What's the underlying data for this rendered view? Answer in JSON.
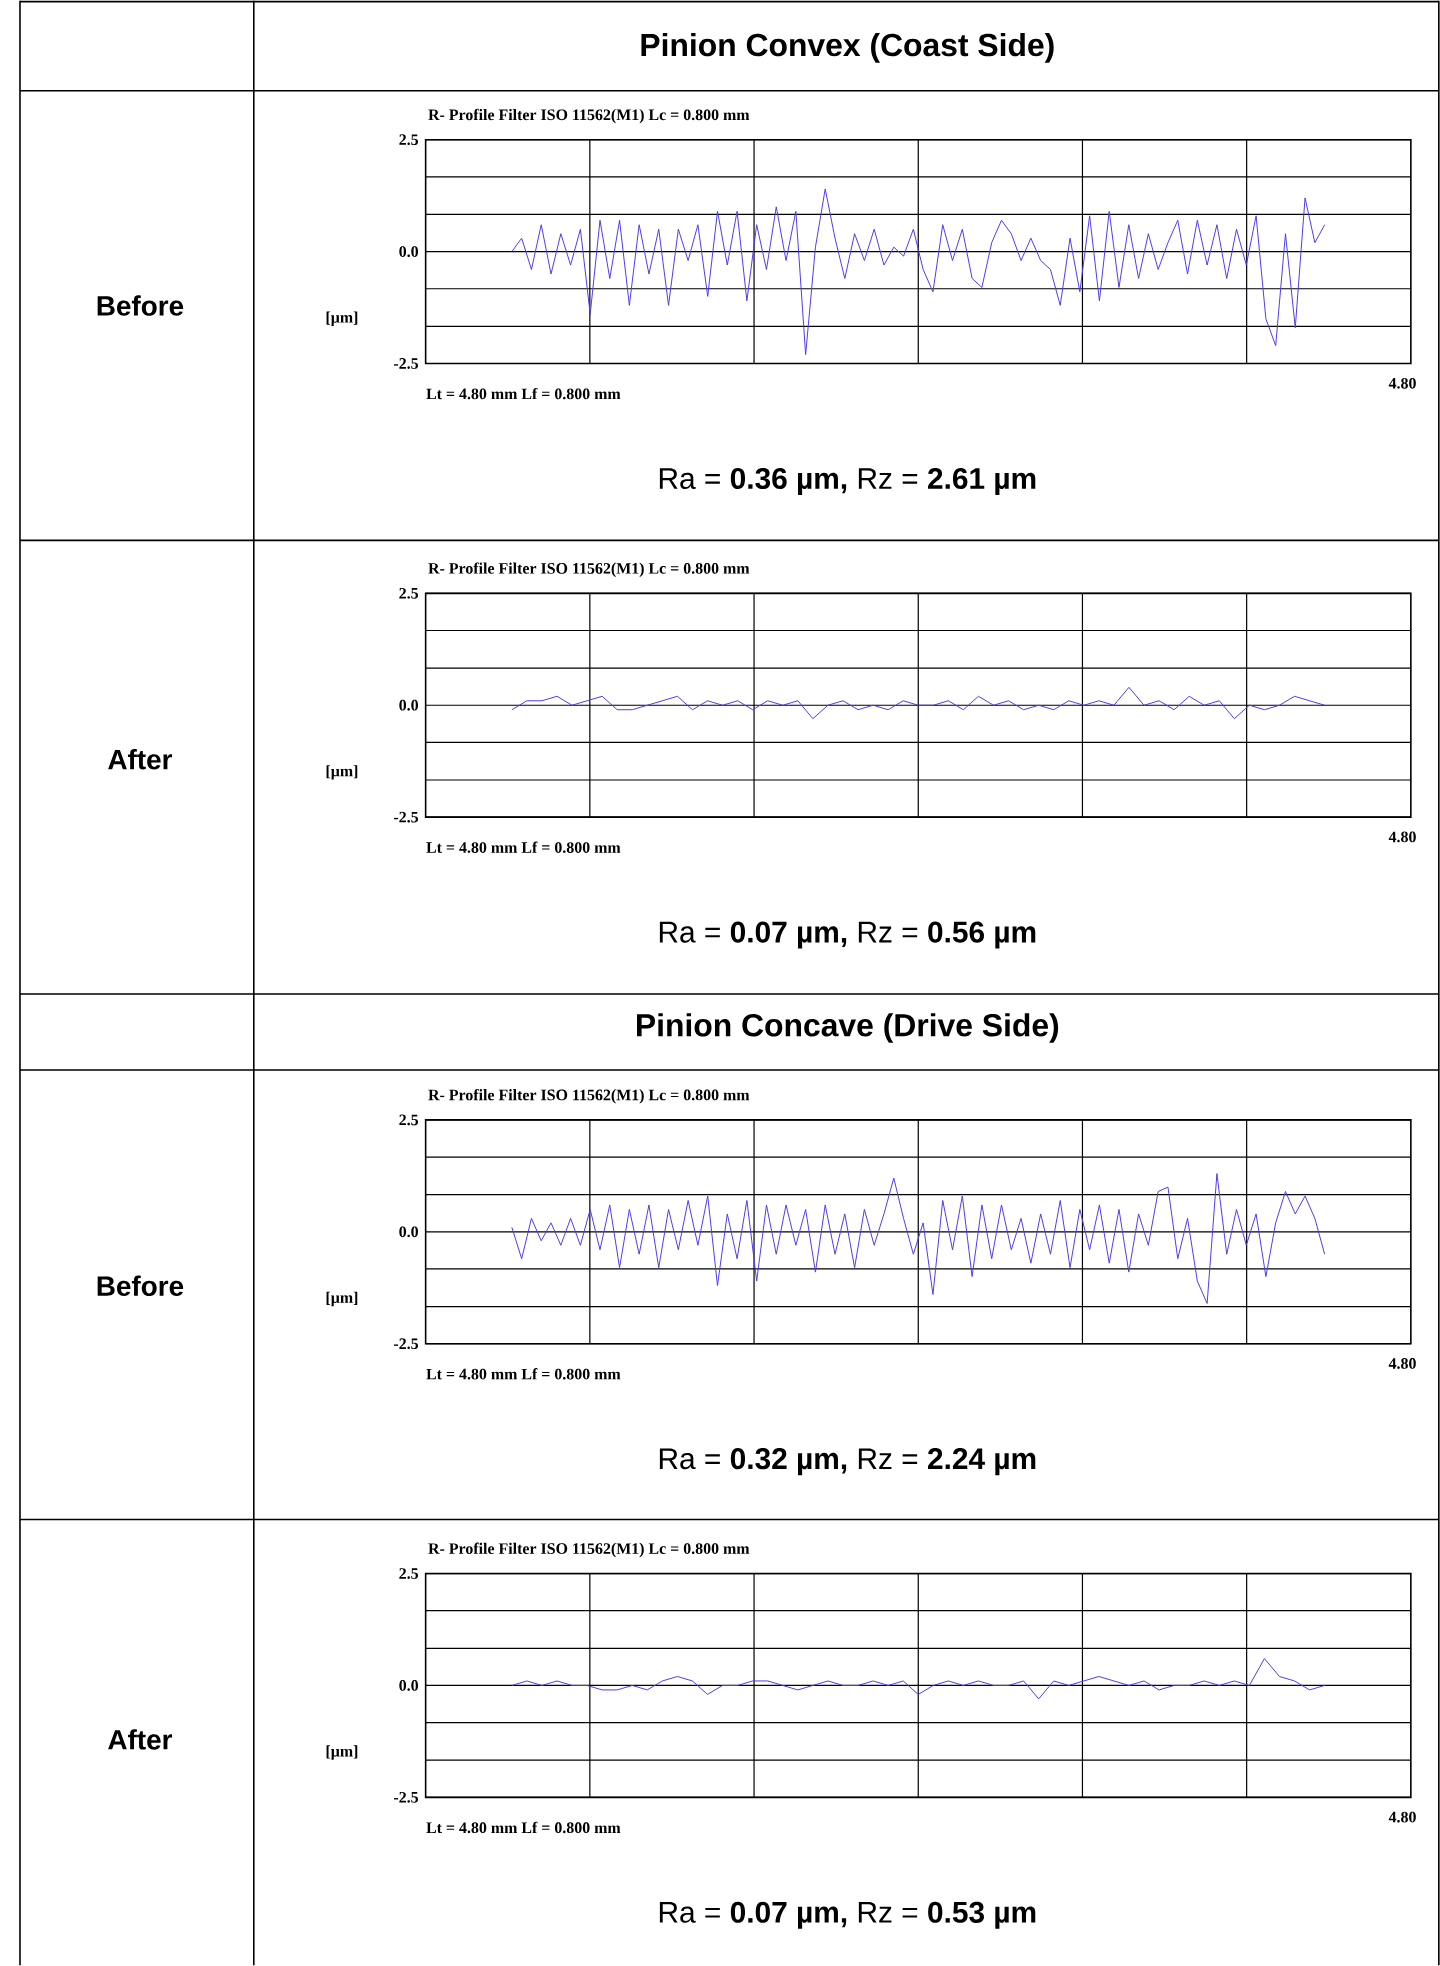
{
  "chart_data": [
    {
      "type": "line",
      "title": "R- Profile Filter ISO 11562(M1) Lc = 0.800 mm",
      "ylabel": "[µm]",
      "color": "#4b3cf0",
      "grid": true,
      "ylim": [
        -2.5,
        2.5
      ],
      "yticks": [
        {
          "value": -2.5,
          "label": "-2.5"
        },
        {
          "value": -1.67,
          "label": null
        },
        {
          "value": -0.83,
          "label": null
        },
        {
          "value": 0,
          "label": "0.0"
        },
        {
          "value": 0.83,
          "label": null
        },
        {
          "value": 1.67,
          "label": null
        },
        {
          "value": 2.5,
          "label": "2.5"
        }
      ],
      "categories": [
        null,
        null,
        null,
        null,
        null,
        null,
        null,
        null,
        null,
        null,
        null,
        null,
        null,
        null,
        null,
        null,
        null,
        null,
        null,
        null,
        null,
        null,
        null,
        null,
        null,
        null,
        null,
        null,
        null,
        null,
        null,
        null,
        null,
        null,
        null,
        null,
        null,
        null,
        null,
        null,
        null,
        null,
        null,
        null,
        null,
        null,
        null,
        null,
        null,
        null,
        null,
        null,
        null,
        null,
        null,
        null,
        null,
        null,
        null,
        null,
        null,
        null,
        null,
        null,
        null,
        null,
        null,
        null,
        null,
        null,
        null,
        null,
        null,
        null,
        null,
        null,
        null,
        null,
        null,
        null,
        null,
        null,
        null,
        null
      ],
      "values": [
        0.0,
        0.3,
        -0.4,
        0.6,
        -0.5,
        0.4,
        -0.3,
        0.5,
        -1.4,
        0.7,
        -0.6,
        0.7,
        -1.2,
        0.6,
        -0.5,
        0.5,
        -1.2,
        0.5,
        -0.2,
        0.6,
        -1.0,
        0.9,
        -0.3,
        0.9,
        -1.1,
        0.6,
        -0.4,
        1.0,
        -0.2,
        0.9,
        -2.3,
        0.1,
        1.4,
        0.3,
        -0.6,
        0.4,
        -0.2,
        0.5,
        -0.3,
        0.1,
        -0.1,
        0.5,
        -0.4,
        -0.9,
        0.6,
        -0.2,
        0.5,
        -0.6,
        -0.8,
        0.2,
        0.7,
        0.4,
        -0.2,
        0.3,
        -0.2,
        -0.4,
        -1.2,
        0.3,
        -0.9,
        0.8,
        -1.1,
        0.9,
        -0.8,
        0.6,
        -0.6,
        0.4,
        -0.4,
        0.2,
        0.7,
        -0.5,
        0.7,
        -0.3,
        0.6,
        -0.6,
        0.5,
        -0.3,
        0.8,
        -1.5,
        -2.1,
        0.4,
        -1.7,
        1.2,
        0.2,
        0.6
      ],
      "annotations": [
        "Lt = 4.80 mm Lf = 0.800 mm",
        "Ra = **0.36 µm,** Rz = **2.61 µm**",
        "4.80",
        "Before",
        "Pinion Convex (Coast Side)"
      ]
    },
    {
      "type": "line",
      "title": "R- Profile Filter ISO 11562(M1) Lc = 0.800 mm",
      "ylabel": "[µm]",
      "color": "#4b3cf0",
      "grid": true,
      "ylim": [
        -2.5,
        2.5
      ],
      "yticks": [
        {
          "value": -2.5,
          "label": "-2.5"
        },
        {
          "value": -1.67,
          "label": null
        },
        {
          "value": -0.83,
          "label": null
        },
        {
          "value": 0,
          "label": "0.0"
        },
        {
          "value": 0.83,
          "label": null
        },
        {
          "value": 1.67,
          "label": null
        },
        {
          "value": 2.5,
          "label": "2.5"
        }
      ],
      "categories": [
        null,
        null,
        null,
        null,
        null,
        null,
        null,
        null,
        null,
        null,
        null,
        null,
        null,
        null,
        null,
        null,
        null,
        null,
        null,
        null,
        null,
        null,
        null,
        null,
        null,
        null,
        null,
        null,
        null,
        null,
        null,
        null,
        null,
        null,
        null,
        null,
        null,
        null,
        null,
        null,
        null,
        null,
        null,
        null,
        null,
        null,
        null,
        null,
        null,
        null,
        null,
        null,
        null,
        null,
        null
      ],
      "values": [
        -0.1,
        0.1,
        0.1,
        0.2,
        0.0,
        0.1,
        0.2,
        -0.1,
        -0.1,
        0.0,
        0.1,
        0.2,
        -0.1,
        0.1,
        0.0,
        0.1,
        -0.1,
        0.1,
        0.0,
        0.1,
        -0.3,
        0.0,
        0.1,
        -0.1,
        0.0,
        -0.1,
        0.1,
        0.0,
        0.0,
        0.1,
        -0.1,
        0.2,
        0.0,
        0.1,
        -0.1,
        0.0,
        -0.1,
        0.1,
        0.0,
        0.1,
        0.0,
        0.4,
        0.0,
        0.1,
        -0.1,
        0.2,
        0.0,
        0.1,
        -0.3,
        0.0,
        -0.1,
        0.0,
        0.2,
        0.1,
        0.0
      ],
      "annotations": [
        "Lt = 4.80 mm Lf = 0.800 mm",
        "Ra = **0.07 µm,** Rz = **0.56 µm**",
        "4.80",
        "After"
      ]
    },
    {
      "type": "line",
      "title": "R- Profile Filter ISO 11562(M1) Lc = 0.800 mm",
      "ylabel": "[µm]",
      "color": "#4b3cf0",
      "grid": true,
      "ylim": [
        -2.5,
        2.5
      ],
      "yticks": [
        {
          "value": -2.5,
          "label": "-2.5"
        },
        {
          "value": -1.67,
          "label": null
        },
        {
          "value": -0.83,
          "label": null
        },
        {
          "value": 0,
          "label": "0.0"
        },
        {
          "value": 0.83,
          "label": null
        },
        {
          "value": 1.67,
          "label": null
        },
        {
          "value": 2.5,
          "label": "2.5"
        }
      ],
      "categories": [
        null,
        null,
        null,
        null,
        null,
        null,
        null,
        null,
        null,
        null,
        null,
        null,
        null,
        null,
        null,
        null,
        null,
        null,
        null,
        null,
        null,
        null,
        null,
        null,
        null,
        null,
        null,
        null,
        null,
        null,
        null,
        null,
        null,
        null,
        null,
        null,
        null,
        null,
        null,
        null,
        null,
        null,
        null,
        null,
        null,
        null,
        null,
        null,
        null,
        null,
        null,
        null,
        null,
        null,
        null,
        null,
        null,
        null,
        null,
        null,
        null,
        null,
        null,
        null,
        null,
        null,
        null,
        null,
        null,
        null,
        null,
        null,
        null,
        null,
        null,
        null,
        null,
        null,
        null,
        null,
        null,
        null,
        null,
        null
      ],
      "values": [
        0.1,
        -0.6,
        0.3,
        -0.2,
        0.2,
        -0.3,
        0.3,
        -0.3,
        0.5,
        -0.4,
        0.6,
        -0.8,
        0.5,
        -0.5,
        0.6,
        -0.8,
        0.5,
        -0.4,
        0.7,
        -0.3,
        0.8,
        -1.2,
        0.4,
        -0.6,
        0.7,
        -1.1,
        0.6,
        -0.5,
        0.6,
        -0.3,
        0.5,
        -0.9,
        0.6,
        -0.5,
        0.4,
        -0.8,
        0.5,
        -0.3,
        0.4,
        1.2,
        0.3,
        -0.5,
        0.2,
        -1.4,
        0.7,
        -0.4,
        0.8,
        -1.0,
        0.6,
        -0.6,
        0.6,
        -0.4,
        0.3,
        -0.7,
        0.4,
        -0.5,
        0.7,
        -0.8,
        0.5,
        -0.4,
        0.6,
        -0.7,
        0.5,
        -0.9,
        0.4,
        -0.3,
        0.9,
        1.0,
        -0.6,
        0.3,
        -1.1,
        -1.6,
        1.3,
        -0.5,
        0.5,
        -0.3,
        0.4,
        -1.0,
        0.2,
        0.9,
        0.4,
        0.8,
        0.3,
        -0.5
      ],
      "annotations": [
        "Lt = 4.80 mm Lf = 0.800 mm",
        "Ra = **0.32 µm,** Rz = **2.24 µm**",
        "4.80",
        "Before",
        "Pinion Concave (Drive Side)"
      ]
    },
    {
      "type": "line",
      "title": "R- Profile Filter ISO 11562(M1) Lc = 0.800 mm",
      "ylabel": "[µm]",
      "color": "#4b3cf0",
      "grid": true,
      "ylim": [
        -2.5,
        2.5
      ],
      "yticks": [
        {
          "value": -2.5,
          "label": "-2.5"
        },
        {
          "value": -1.67,
          "label": null
        },
        {
          "value": -0.83,
          "label": null
        },
        {
          "value": 0,
          "label": "0.0"
        },
        {
          "value": 0.83,
          "label": null
        },
        {
          "value": 1.67,
          "label": null
        },
        {
          "value": 2.5,
          "label": "2.5"
        }
      ],
      "categories": [
        null,
        null,
        null,
        null,
        null,
        null,
        null,
        null,
        null,
        null,
        null,
        null,
        null,
        null,
        null,
        null,
        null,
        null,
        null,
        null,
        null,
        null,
        null,
        null,
        null,
        null,
        null,
        null,
        null,
        null,
        null,
        null,
        null,
        null,
        null,
        null,
        null,
        null,
        null,
        null,
        null,
        null,
        null,
        null,
        null,
        null,
        null,
        null,
        null,
        null,
        null,
        null,
        null,
        null,
        null
      ],
      "values": [
        0.0,
        0.1,
        0.0,
        0.1,
        0.0,
        0.0,
        -0.1,
        -0.1,
        0.0,
        -0.1,
        0.1,
        0.2,
        0.1,
        -0.2,
        0.0,
        0.0,
        0.1,
        0.1,
        0.0,
        -0.1,
        0.0,
        0.1,
        0.0,
        0.0,
        0.1,
        0.0,
        0.1,
        -0.2,
        0.0,
        0.1,
        0.0,
        0.1,
        0.0,
        0.0,
        0.1,
        -0.3,
        0.1,
        0.0,
        0.1,
        0.2,
        0.1,
        0.0,
        0.1,
        -0.1,
        0.0,
        0.0,
        0.1,
        0.0,
        0.1,
        0.0,
        0.6,
        0.2,
        0.1,
        -0.1,
        0.0
      ],
      "annotations": [
        "Lt = 4.80 mm Lf = 0.800 mm",
        "Ra = **0.07 µm,** Rz = **0.53 µm**",
        "4.80",
        "After"
      ]
    }
  ]
}
